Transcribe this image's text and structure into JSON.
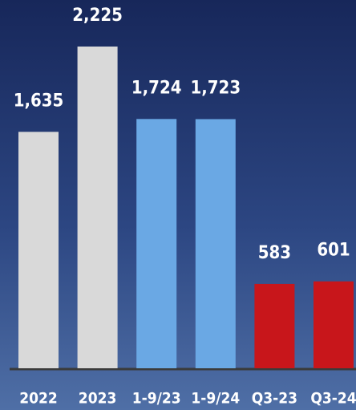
{
  "chart_data": {
    "type": "bar",
    "categories": [
      "2022",
      "2023",
      "1-9/23",
      "1-9/24",
      "Q3-23",
      "Q3-24"
    ],
    "values": [
      1635,
      2225,
      1724,
      1723,
      583,
      601
    ],
    "value_labels": [
      "1,635",
      "2,225",
      "1,724",
      "1,723",
      "583",
      "601"
    ],
    "colors": [
      "#d9d9d9",
      "#d9d9d9",
      "#6aa8e4",
      "#6aa8e4",
      "#c8161b",
      "#c8161b"
    ]
  }
}
